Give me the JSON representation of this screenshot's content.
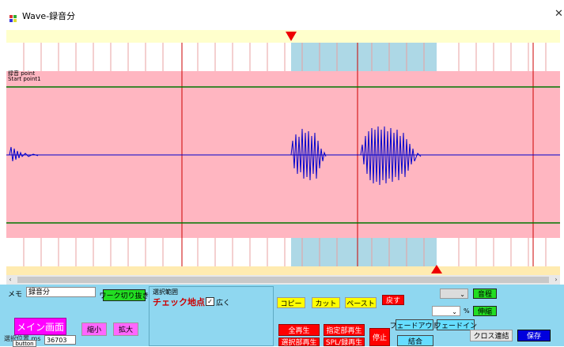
{
  "window": {
    "title": "Wave-録音分",
    "close": "✕"
  },
  "wave": {
    "label_line1": "録音 point",
    "label_line2": "Start point1"
  },
  "panel": {
    "memo_label": "メモ",
    "memo_value": "録音分",
    "work_cut_btn": "ワーク切り抜き",
    "sel_range_label": "選択範囲",
    "check_point_label": "チェック地点",
    "wide_check_label": "広く",
    "main_screen_btn": "メイン画面",
    "shrink_btn": "縮小",
    "expand_btn": "拡大",
    "status_label": "選択位置 ms",
    "tooltip": "button",
    "status_value": "36703",
    "copy_btn": "コピー",
    "cut_btn": "カット",
    "paste_btn": "ペースト",
    "undo_btn": "戻す",
    "pitch_btn": "音程",
    "stretch_btn": "伸縮",
    "percent_label": "%",
    "fadeout_btn": "フェードアウト",
    "fadein_btn": "フェードイン",
    "crossfade_btn": "クロス連結",
    "save_btn": "保存",
    "play_all_btn": "全再生",
    "play_range_btn": "指定部再生",
    "play_sel_btn": "選択部再生",
    "spl_btn": "SPL/録再生",
    "stop_btn": "停止",
    "join_btn": "結合"
  },
  "colors": {
    "panel_bg": "#8fd7f0",
    "wave_bg": "#ffb6c1",
    "selection": "#add8e6",
    "waveform": "#0000cc",
    "marker": "#ff0000"
  }
}
